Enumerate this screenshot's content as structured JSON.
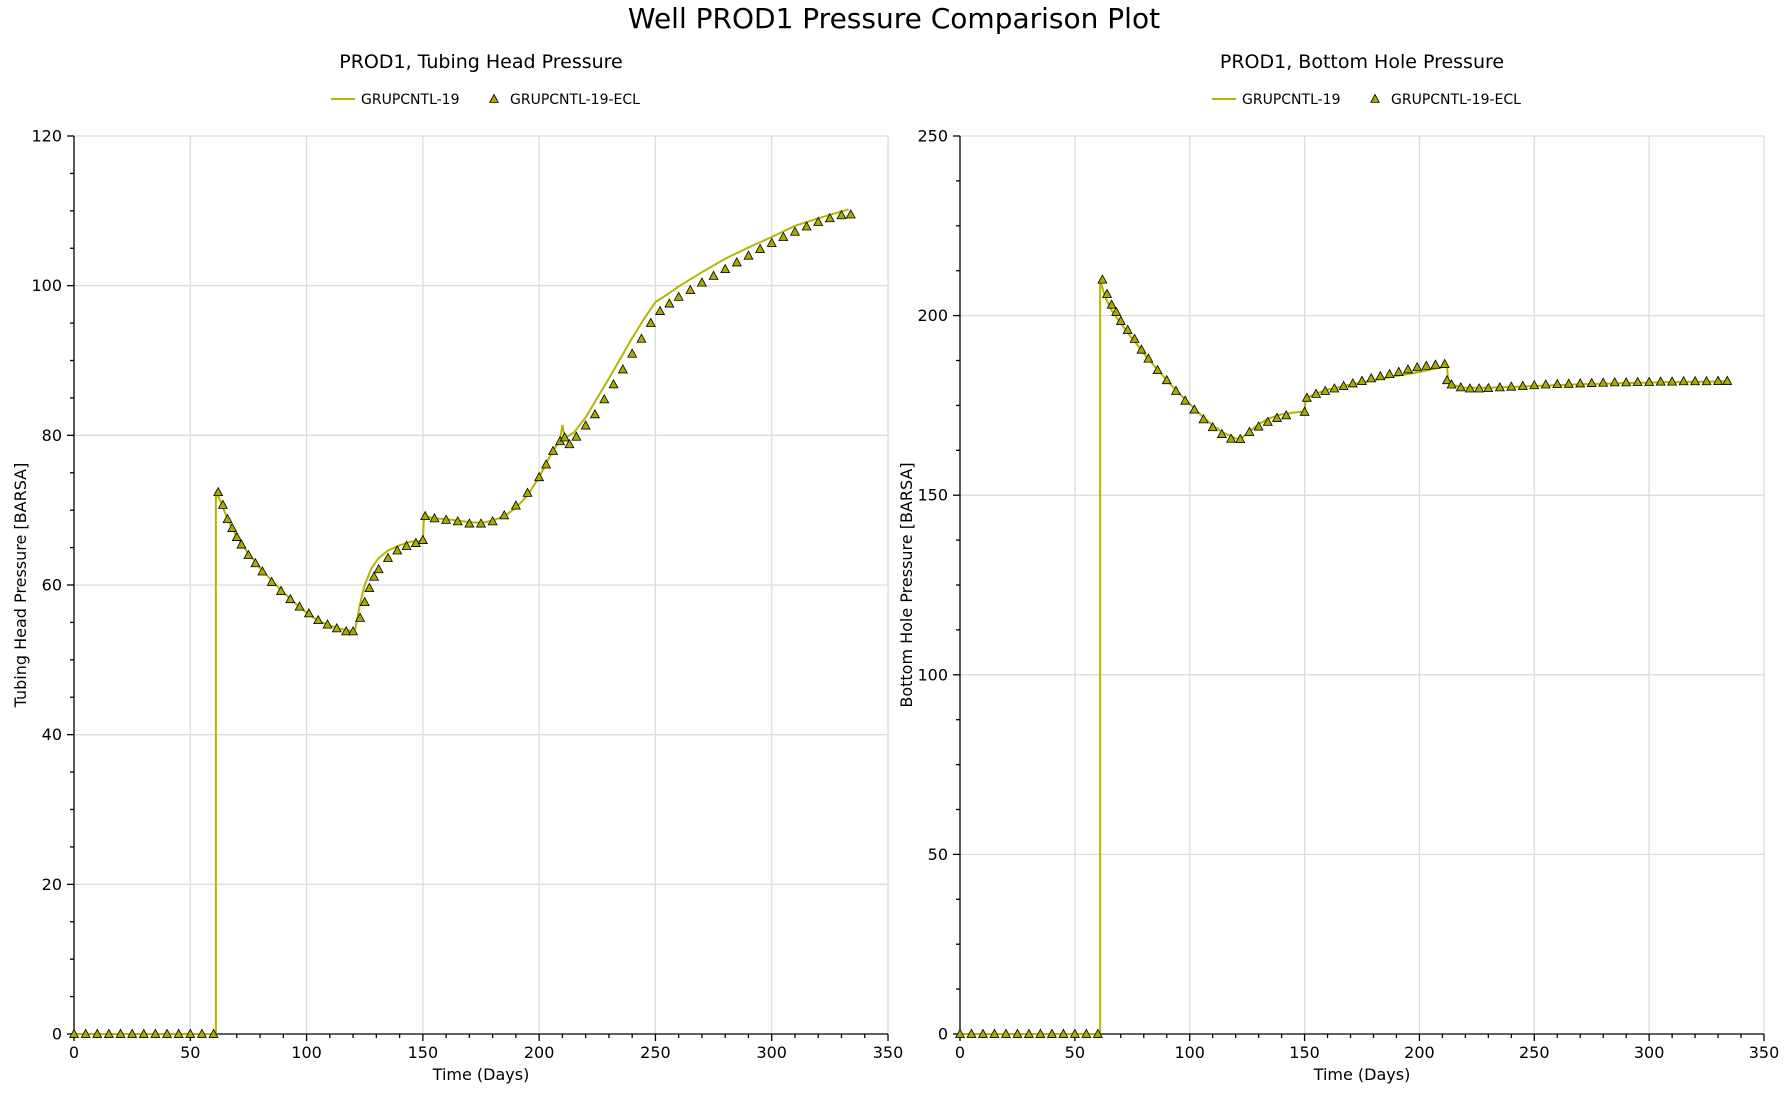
{
  "title": "Well PROD1 Pressure Comparison Plot",
  "colors": {
    "line": "#b5b500",
    "marker_fill": "#aaaa00",
    "marker_stroke": "#000000",
    "grid": "#dcdcdc"
  },
  "chart_data": [
    {
      "type": "line",
      "title": "PROD1, Tubing Head Pressure",
      "xlabel": "Time (Days)",
      "ylabel": "Tubing Head Pressure [BARSA]",
      "xlim": [
        0,
        350
      ],
      "ylim": [
        0,
        120
      ],
      "xticks": [
        0,
        50,
        100,
        150,
        200,
        250,
        300,
        350
      ],
      "yticks": [
        0,
        20,
        40,
        60,
        80,
        100,
        120
      ],
      "grid": true,
      "legend_position": "top-center",
      "series": [
        {
          "name": "GRUPCNTL-19",
          "style": "line",
          "x": [
            0,
            61,
            61,
            63,
            66,
            70,
            75,
            80,
            85,
            90,
            95,
            100,
            105,
            110,
            115,
            120,
            121,
            123,
            125,
            128,
            131,
            135,
            140,
            145,
            150,
            150.5,
            155,
            160,
            165,
            170,
            175,
            180,
            185,
            190,
            195,
            200,
            205,
            209,
            210,
            211,
            215,
            220,
            225,
            230,
            235,
            240,
            245,
            250,
            255,
            260,
            270,
            280,
            290,
            300,
            310,
            320,
            333
          ],
          "y": [
            0,
            0,
            72.5,
            71.2,
            68.8,
            66.4,
            64.2,
            62.3,
            60.6,
            59.0,
            57.6,
            56.3,
            55.2,
            54.6,
            54.1,
            53.8,
            54.2,
            57.5,
            60.0,
            62.3,
            63.6,
            64.6,
            65.3,
            65.8,
            65.9,
            69.2,
            68.9,
            68.8,
            68.6,
            68.4,
            68.3,
            68.6,
            69.2,
            70.3,
            72.0,
            74.4,
            77.4,
            79.4,
            81.4,
            79.6,
            80.4,
            82.4,
            85.0,
            87.6,
            90.3,
            93.0,
            95.5,
            97.8,
            98.8,
            99.9,
            101.8,
            103.6,
            105.1,
            106.5,
            108.0,
            109.0,
            110.2
          ]
        },
        {
          "name": "GRUPCNTL-19-ECL",
          "style": "markers",
          "x": [
            0,
            5,
            10,
            15,
            20,
            25,
            30,
            35,
            40,
            45,
            50,
            55,
            60,
            62,
            64,
            66,
            68,
            70,
            72,
            75,
            78,
            81,
            85,
            89,
            93,
            97,
            101,
            105,
            109,
            113,
            117,
            120,
            123,
            125,
            127,
            129,
            131,
            135,
            139,
            143,
            147,
            150,
            151,
            155,
            160,
            165,
            170,
            175,
            180,
            185,
            190,
            195,
            200,
            203,
            206,
            209,
            211,
            213,
            216,
            220,
            224,
            228,
            232,
            236,
            240,
            244,
            248,
            252,
            256,
            260,
            265,
            270,
            275,
            280,
            285,
            290,
            295,
            300,
            305,
            310,
            315,
            320,
            325,
            330,
            334
          ],
          "y": [
            0,
            0,
            0,
            0,
            0,
            0,
            0,
            0,
            0,
            0,
            0,
            0,
            0,
            72.4,
            70.7,
            68.8,
            67.6,
            66.4,
            65.4,
            64.0,
            62.9,
            61.8,
            60.4,
            59.2,
            58.1,
            57.1,
            56.2,
            55.3,
            54.7,
            54.2,
            53.8,
            53.8,
            55.6,
            57.7,
            59.6,
            61.1,
            62.1,
            63.6,
            64.6,
            65.2,
            65.6,
            66.0,
            69.2,
            68.9,
            68.7,
            68.5,
            68.2,
            68.2,
            68.5,
            69.3,
            70.6,
            72.3,
            74.4,
            76.1,
            77.9,
            79.2,
            79.7,
            78.8,
            79.8,
            81.3,
            82.8,
            84.8,
            86.8,
            88.8,
            90.9,
            92.9,
            95.0,
            96.6,
            97.6,
            98.5,
            99.4,
            100.4,
            101.3,
            102.2,
            103.1,
            104.0,
            104.9,
            105.7,
            106.5,
            107.2,
            107.9,
            108.5,
            109.0,
            109.4,
            109.5
          ]
        }
      ]
    },
    {
      "type": "line",
      "title": "PROD1, Bottom Hole Pressure",
      "xlabel": "Time (Days)",
      "ylabel": "Bottom Hole Pressure [BARSA]",
      "xlim": [
        0,
        350
      ],
      "ylim": [
        0,
        250
      ],
      "xticks": [
        0,
        50,
        100,
        150,
        200,
        250,
        300,
        350
      ],
      "yticks": [
        0,
        50,
        100,
        150,
        200,
        250
      ],
      "grid": true,
      "legend_position": "top-center",
      "series": [
        {
          "name": "GRUPCNTL-19",
          "style": "line",
          "x": [
            0,
            61,
            61,
            63,
            66,
            70,
            75,
            80,
            85,
            90,
            95,
            100,
            105,
            110,
            115,
            120,
            122,
            125,
            130,
            135,
            140,
            145,
            150,
            150.5,
            155,
            160,
            170,
            180,
            190,
            200,
            205,
            212,
            212.5,
            215,
            220,
            230,
            250,
            270,
            290,
            310,
            334
          ],
          "y": [
            0,
            0,
            210,
            205.5,
            201.5,
            197.8,
            193.6,
            189.5,
            185.7,
            182.0,
            178.6,
            175.4,
            172.3,
            169.4,
            167.3,
            165.8,
            165.6,
            167.2,
            169.8,
            171.5,
            172.5,
            173.0,
            173.3,
            177.0,
            178.3,
            179.4,
            180.8,
            182.0,
            183.2,
            184.3,
            185.0,
            185.9,
            182.0,
            180.6,
            179.9,
            179.9,
            180.4,
            180.9,
            181.2,
            181.5,
            181.7
          ]
        },
        {
          "name": "GRUPCNTL-19-ECL",
          "style": "markers",
          "x": [
            0,
            5,
            10,
            15,
            20,
            25,
            30,
            35,
            40,
            45,
            50,
            55,
            60,
            62,
            64,
            66,
            68,
            70,
            73,
            76,
            79,
            82,
            86,
            90,
            94,
            98,
            102,
            106,
            110,
            114,
            118,
            122,
            126,
            130,
            134,
            138,
            142,
            150,
            151,
            155,
            159,
            163,
            167,
            171,
            175,
            179,
            183,
            187,
            191,
            195,
            199,
            203,
            207,
            211,
            212,
            214,
            218,
            222,
            226,
            230,
            235,
            240,
            245,
            250,
            255,
            260,
            265,
            270,
            275,
            280,
            285,
            290,
            295,
            300,
            305,
            310,
            315,
            320,
            325,
            330,
            334
          ],
          "y": [
            0,
            0,
            0,
            0,
            0,
            0,
            0,
            0,
            0,
            0,
            0,
            0,
            0,
            210,
            206,
            203,
            201,
            198.5,
            196,
            193.5,
            190.5,
            188,
            184.8,
            182,
            179,
            176.3,
            173.8,
            171.1,
            168.9,
            167.0,
            165.7,
            165.6,
            167.6,
            169.1,
            170.4,
            171.5,
            172.2,
            173.2,
            177.1,
            178.2,
            179.0,
            179.7,
            180.4,
            181.1,
            181.8,
            182.5,
            183.1,
            183.7,
            184.3,
            185.0,
            185.6,
            186.0,
            186.3,
            186.5,
            182.0,
            180.8,
            180.0,
            179.7,
            179.7,
            179.8,
            180.0,
            180.2,
            180.4,
            180.6,
            180.8,
            180.9,
            181.0,
            181.1,
            181.2,
            181.3,
            181.4,
            181.4,
            181.5,
            181.5,
            181.6,
            181.6,
            181.7,
            181.7,
            181.7,
            181.8,
            181.8
          ]
        }
      ]
    }
  ]
}
